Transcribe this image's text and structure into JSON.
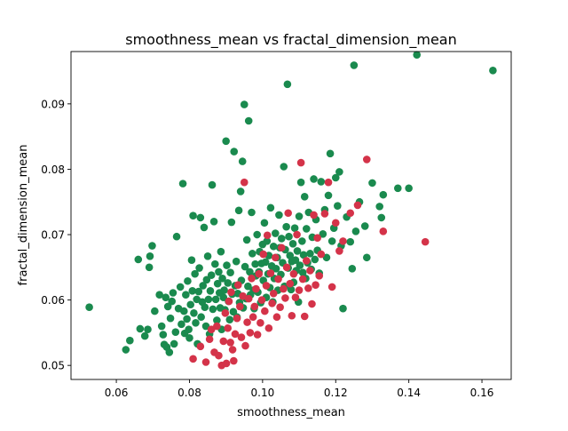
{
  "chart_data": {
    "type": "scatter",
    "title": "smoothness_mean vs fractal_dimension_mean",
    "xlabel": "smoothness_mean",
    "ylabel": "fractal_dimension_mean",
    "xlim": [
      0.0476,
      0.168
    ],
    "ylim": [
      0.04785,
      0.098
    ],
    "xticks": [
      "0.06",
      "0.08",
      "0.10",
      "0.12",
      "0.14",
      "0.16"
    ],
    "yticks": [
      "0.05",
      "0.06",
      "0.07",
      "0.08",
      "0.09"
    ],
    "grid": false,
    "legend": "none",
    "series": [
      {
        "color": "#1a8a4e",
        "points": [
          [
            0.0526,
            0.0589
          ],
          [
            0.0626,
            0.0524
          ],
          [
            0.0637,
            0.0538
          ],
          [
            0.066,
            0.0662
          ],
          [
            0.0665,
            0.0556
          ],
          [
            0.0678,
            0.0545
          ],
          [
            0.0686,
            0.0555
          ],
          [
            0.069,
            0.065
          ],
          [
            0.0692,
            0.0667
          ],
          [
            0.0698,
            0.0683
          ],
          [
            0.0705,
            0.0583
          ],
          [
            0.0718,
            0.0608
          ],
          [
            0.0724,
            0.056
          ],
          [
            0.0728,
            0.0547
          ],
          [
            0.0731,
            0.0532
          ],
          [
            0.0735,
            0.0604
          ],
          [
            0.0738,
            0.0528
          ],
          [
            0.0741,
            0.059
          ],
          [
            0.0745,
            0.052
          ],
          [
            0.0748,
            0.0572
          ],
          [
            0.0752,
            0.0598
          ],
          [
            0.0755,
            0.0611
          ],
          [
            0.0758,
            0.0533
          ],
          [
            0.0762,
            0.0551
          ],
          [
            0.0765,
            0.0697
          ],
          [
            0.077,
            0.0587
          ],
          [
            0.0775,
            0.062
          ],
          [
            0.0778,
            0.0563
          ],
          [
            0.0782,
            0.0778
          ],
          [
            0.0785,
            0.0583
          ],
          [
            0.0787,
            0.0549
          ],
          [
            0.079,
            0.0608
          ],
          [
            0.0793,
            0.0571
          ],
          [
            0.0795,
            0.0629
          ],
          [
            0.0798,
            0.0555
          ],
          [
            0.08,
            0.0542
          ],
          [
            0.0803,
            0.0593
          ],
          [
            0.0806,
            0.0661
          ],
          [
            0.0808,
            0.0614
          ],
          [
            0.081,
            0.0729
          ],
          [
            0.0812,
            0.058
          ],
          [
            0.0815,
            0.064
          ],
          [
            0.0817,
            0.0565
          ],
          [
            0.082,
            0.0601
          ],
          [
            0.0822,
            0.0533
          ],
          [
            0.0825,
            0.0613
          ],
          [
            0.0827,
            0.0649
          ],
          [
            0.083,
            0.0726
          ],
          [
            0.0832,
            0.0574
          ],
          [
            0.0835,
            0.0597
          ],
          [
            0.0837,
            0.0622
          ],
          [
            0.084,
            0.0711
          ],
          [
            0.0842,
            0.0589
          ],
          [
            0.0845,
            0.056
          ],
          [
            0.0847,
            0.0631
          ],
          [
            0.085,
            0.0667
          ],
          [
            0.0852,
            0.0601
          ],
          [
            0.0855,
            0.0548
          ],
          [
            0.0857,
            0.0614
          ],
          [
            0.086,
            0.0638
          ],
          [
            0.0862,
            0.0776
          ],
          [
            0.0864,
            0.0586
          ],
          [
            0.0867,
            0.072
          ],
          [
            0.087,
            0.0655
          ],
          [
            0.0872,
            0.0601
          ],
          [
            0.0875,
            0.0569
          ],
          [
            0.0877,
            0.0625
          ],
          [
            0.088,
            0.0643
          ],
          [
            0.0882,
            0.0611
          ],
          [
            0.0884,
            0.0588
          ],
          [
            0.0886,
            0.0674
          ],
          [
            0.0888,
            0.0555
          ],
          [
            0.089,
            0.0633
          ],
          [
            0.0893,
            0.0604
          ],
          [
            0.0895,
            0.0615
          ],
          [
            0.0897,
            0.0585
          ],
          [
            0.09,
            0.0843
          ],
          [
            0.0902,
            0.0653
          ],
          [
            0.0905,
            0.0626
          ],
          [
            0.0907,
            0.0598
          ],
          [
            0.091,
            0.057
          ],
          [
            0.0912,
            0.0642
          ],
          [
            0.0915,
            0.0719
          ],
          [
            0.0917,
            0.0609
          ],
          [
            0.092,
            0.0582
          ],
          [
            0.0922,
            0.0827
          ],
          [
            0.0925,
            0.0622
          ],
          [
            0.0928,
            0.0659
          ],
          [
            0.093,
            0.0574
          ],
          [
            0.0932,
            0.061
          ],
          [
            0.0935,
            0.0737
          ],
          [
            0.0937,
            0.0596
          ],
          [
            0.094,
            0.0766
          ],
          [
            0.0942,
            0.063
          ],
          [
            0.0945,
            0.0812
          ],
          [
            0.0947,
            0.0588
          ],
          [
            0.095,
            0.0899
          ],
          [
            0.0952,
            0.0651
          ],
          [
            0.0955,
            0.0602
          ],
          [
            0.0957,
            0.0692
          ],
          [
            0.096,
            0.0621
          ],
          [
            0.0962,
            0.0874
          ],
          [
            0.0965,
            0.0643
          ],
          [
            0.0967,
            0.0608
          ],
          [
            0.097,
            0.0734
          ],
          [
            0.0972,
            0.0671
          ],
          [
            0.0975,
            0.0615
          ],
          [
            0.0977,
            0.0587
          ],
          [
            0.098,
            0.0655
          ],
          [
            0.0982,
            0.0637
          ],
          [
            0.0985,
            0.07
          ],
          [
            0.0987,
            0.0612
          ],
          [
            0.099,
            0.0643
          ],
          [
            0.0992,
            0.0674
          ],
          [
            0.0995,
            0.0596
          ],
          [
            0.0997,
            0.0656
          ],
          [
            0.1,
            0.0685
          ],
          [
            0.1002,
            0.063
          ],
          [
            0.1005,
            0.0718
          ],
          [
            0.1008,
            0.0658
          ],
          [
            0.101,
            0.0604
          ],
          [
            0.1012,
            0.069
          ],
          [
            0.1015,
            0.064
          ],
          [
            0.1017,
            0.0668
          ],
          [
            0.102,
            0.0619
          ],
          [
            0.1022,
            0.0741
          ],
          [
            0.1025,
            0.0652
          ],
          [
            0.1028,
            0.0597
          ],
          [
            0.103,
            0.0682
          ],
          [
            0.1032,
            0.0633
          ],
          [
            0.1035,
            0.0702
          ],
          [
            0.1037,
            0.0648
          ],
          [
            0.104,
            0.0665
          ],
          [
            0.1042,
            0.0615
          ],
          [
            0.1045,
            0.073
          ],
          [
            0.1047,
            0.068
          ],
          [
            0.105,
            0.0639
          ],
          [
            0.1052,
            0.0694
          ],
          [
            0.1055,
            0.0657
          ],
          [
            0.1058,
            0.0804
          ],
          [
            0.106,
            0.0621
          ],
          [
            0.1062,
            0.0677
          ],
          [
            0.1065,
            0.0712
          ],
          [
            0.1068,
            0.093
          ],
          [
            0.107,
            0.0649
          ],
          [
            0.1072,
            0.0697
          ],
          [
            0.1075,
            0.0668
          ],
          [
            0.1078,
            0.0616
          ],
          [
            0.108,
            0.0659
          ],
          [
            0.1083,
            0.0686
          ],
          [
            0.1085,
            0.0627
          ],
          [
            0.1088,
            0.071
          ],
          [
            0.109,
            0.0661
          ],
          [
            0.1092,
            0.0645
          ],
          [
            0.1095,
            0.0675
          ],
          [
            0.1098,
            0.0597
          ],
          [
            0.11,
            0.0728
          ],
          [
            0.1102,
            0.0653
          ],
          [
            0.1105,
            0.078
          ],
          [
            0.1108,
            0.069
          ],
          [
            0.111,
            0.0642
          ],
          [
            0.1112,
            0.0669
          ],
          [
            0.1115,
            0.0758
          ],
          [
            0.1118,
            0.0633
          ],
          [
            0.112,
            0.0709
          ],
          [
            0.1123,
            0.0657
          ],
          [
            0.1126,
            0.0734
          ],
          [
            0.113,
            0.0671
          ],
          [
            0.1133,
            0.0647
          ],
          [
            0.1136,
            0.0696
          ],
          [
            0.114,
            0.0785
          ],
          [
            0.1143,
            0.0662
          ],
          [
            0.1146,
            0.0723
          ],
          [
            0.115,
            0.0676
          ],
          [
            0.1155,
            0.0641
          ],
          [
            0.116,
            0.0781
          ],
          [
            0.1165,
            0.0701
          ],
          [
            0.117,
            0.0738
          ],
          [
            0.1175,
            0.0665
          ],
          [
            0.118,
            0.076
          ],
          [
            0.1185,
            0.0824
          ],
          [
            0.119,
            0.069
          ],
          [
            0.1195,
            0.071
          ],
          [
            0.12,
            0.0787
          ],
          [
            0.1205,
            0.0744
          ],
          [
            0.121,
            0.0796
          ],
          [
            0.1215,
            0.0683
          ],
          [
            0.122,
            0.0587
          ],
          [
            0.123,
            0.0727
          ],
          [
            0.124,
            0.0689
          ],
          [
            0.1245,
            0.0648
          ],
          [
            0.125,
            0.0959
          ],
          [
            0.1255,
            0.0705
          ],
          [
            0.1265,
            0.075
          ],
          [
            0.128,
            0.0713
          ],
          [
            0.1285,
            0.0665
          ],
          [
            0.13,
            0.0779
          ],
          [
            0.132,
            0.0743
          ],
          [
            0.1325,
            0.0726
          ],
          [
            0.133,
            0.0761
          ],
          [
            0.137,
            0.0771
          ],
          [
            0.14,
            0.0771
          ],
          [
            0.1422,
            0.0975
          ],
          [
            0.163,
            0.0951
          ]
        ]
      },
      {
        "color": "#d43349",
        "points": [
          [
            0.081,
            0.051
          ],
          [
            0.083,
            0.0529
          ],
          [
            0.0845,
            0.0505
          ],
          [
            0.0855,
            0.054
          ],
          [
            0.086,
            0.0555
          ],
          [
            0.0868,
            0.052
          ],
          [
            0.0875,
            0.056
          ],
          [
            0.088,
            0.0515
          ],
          [
            0.0888,
            0.05
          ],
          [
            0.0893,
            0.0537
          ],
          [
            0.0898,
            0.058
          ],
          [
            0.0901,
            0.0503
          ],
          [
            0.0905,
            0.0557
          ],
          [
            0.0908,
            0.0598
          ],
          [
            0.0912,
            0.0535
          ],
          [
            0.0914,
            0.0612
          ],
          [
            0.0918,
            0.0524
          ],
          [
            0.0921,
            0.0507
          ],
          [
            0.0925,
            0.0548
          ],
          [
            0.093,
            0.0572
          ],
          [
            0.0933,
            0.0623
          ],
          [
            0.0938,
            0.059
          ],
          [
            0.0942,
            0.0543
          ],
          [
            0.0946,
            0.0606
          ],
          [
            0.095,
            0.078
          ],
          [
            0.0953,
            0.053
          ],
          [
            0.0958,
            0.0566
          ],
          [
            0.0962,
            0.0602
          ],
          [
            0.0966,
            0.055
          ],
          [
            0.097,
            0.0633
          ],
          [
            0.0974,
            0.0574
          ],
          [
            0.0978,
            0.059
          ],
          [
            0.0982,
            0.0617
          ],
          [
            0.0986,
            0.0547
          ],
          [
            0.099,
            0.064
          ],
          [
            0.0994,
            0.0565
          ],
          [
            0.0998,
            0.06
          ],
          [
            0.1002,
            0.067
          ],
          [
            0.1006,
            0.0583
          ],
          [
            0.101,
            0.0622
          ],
          [
            0.1013,
            0.0699
          ],
          [
            0.1017,
            0.0557
          ],
          [
            0.1022,
            0.0641
          ],
          [
            0.1026,
            0.0595
          ],
          [
            0.103,
            0.061
          ],
          [
            0.1035,
            0.0665
          ],
          [
            0.1039,
            0.0574
          ],
          [
            0.1043,
            0.0632
          ],
          [
            0.1048,
            0.0589
          ],
          [
            0.1052,
            0.068
          ],
          [
            0.1057,
            0.0617
          ],
          [
            0.1062,
            0.0603
          ],
          [
            0.1066,
            0.065
          ],
          [
            0.107,
            0.0733
          ],
          [
            0.1075,
            0.0625
          ],
          [
            0.108,
            0.0576
          ],
          [
            0.1085,
            0.064
          ],
          [
            0.109,
            0.0604
          ],
          [
            0.1094,
            0.07
          ],
          [
            0.11,
            0.0615
          ],
          [
            0.1105,
            0.081
          ],
          [
            0.111,
            0.0632
          ],
          [
            0.1115,
            0.0575
          ],
          [
            0.112,
            0.066
          ],
          [
            0.1125,
            0.0618
          ],
          [
            0.113,
            0.0645
          ],
          [
            0.1135,
            0.0594
          ],
          [
            0.114,
            0.073
          ],
          [
            0.1145,
            0.0623
          ],
          [
            0.115,
            0.0695
          ],
          [
            0.1155,
            0.0637
          ],
          [
            0.116,
            0.067
          ],
          [
            0.117,
            0.0732
          ],
          [
            0.118,
            0.078
          ],
          [
            0.119,
            0.062
          ],
          [
            0.12,
            0.0718
          ],
          [
            0.121,
            0.0675
          ],
          [
            0.122,
            0.069
          ],
          [
            0.124,
            0.0733
          ],
          [
            0.126,
            0.0745
          ],
          [
            0.1285,
            0.0815
          ],
          [
            0.133,
            0.0705
          ],
          [
            0.1445,
            0.0689
          ]
        ]
      }
    ]
  }
}
